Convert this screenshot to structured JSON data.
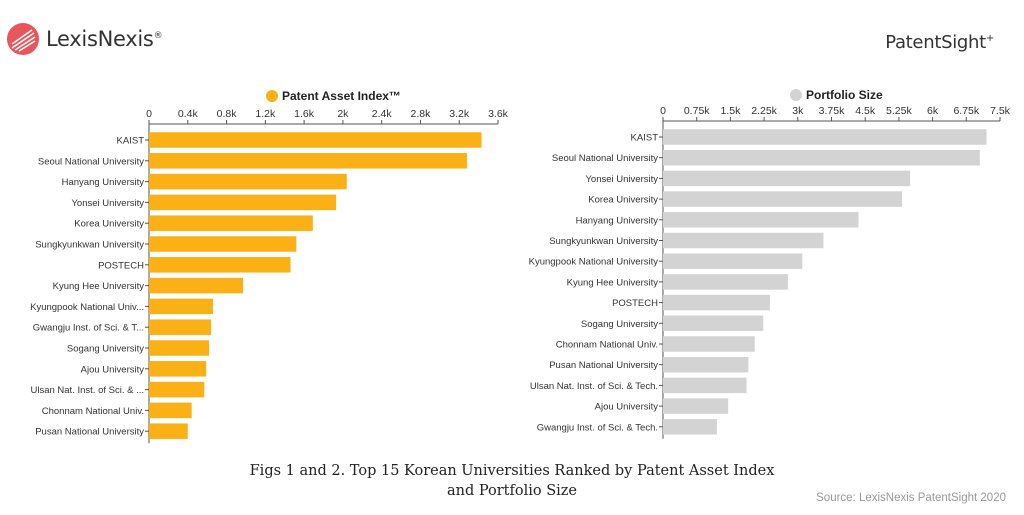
{
  "header": {
    "left_brand": "LexisNexis",
    "left_brand_mark": "®",
    "right_brand": "PatentSight",
    "right_brand_mark": "+"
  },
  "caption": {
    "line1": "Figs 1 and 2. Top 15 Korean Universities Ranked by Patent Asset Index",
    "line2": "and Portfolio Size"
  },
  "source": "Source: LexisNexis PatentSight 2020",
  "chart_data": [
    {
      "type": "bar",
      "orientation": "horizontal",
      "legend": "Patent Asset Index™",
      "color": "#FBB116",
      "xlim": [
        0,
        3600
      ],
      "ticks": [
        0,
        400,
        800,
        1200,
        1600,
        2000,
        2400,
        2800,
        3200,
        3600
      ],
      "tick_labels": [
        "0",
        "0.4k",
        "0.8k",
        "1.2k",
        "1.6k",
        "2k",
        "2.4k",
        "2.8k",
        "3.2k",
        "3.6k"
      ],
      "categories": [
        "KAIST",
        "Seoul National University",
        "Hanyang University",
        "Yonsei University",
        "Korea University",
        "Sungkyunkwan University",
        "POSTECH",
        "Kyung Hee University",
        "Kyungpook National Univ...",
        "Gwangju Inst. of Sci. & T...",
        "Sogang University",
        "Ajou University",
        "Ulsan Nat. Inst. of Sci. & ...",
        "Chonnam National Univ.",
        "Pusan National University"
      ],
      "values": [
        3430,
        3280,
        2040,
        1930,
        1690,
        1520,
        1460,
        970,
        660,
        640,
        620,
        590,
        570,
        440,
        400
      ]
    },
    {
      "type": "bar",
      "orientation": "horizontal",
      "legend": "Portfolio Size",
      "color": "#D3D3D3",
      "xlim": [
        0,
        7500
      ],
      "ticks": [
        0,
        750,
        1500,
        2250,
        3000,
        3750,
        4500,
        5250,
        6000,
        6750,
        7500
      ],
      "tick_labels": [
        "0",
        "0.75k",
        "1.5k",
        "2.25k",
        "3k",
        "3.75k",
        "4.5k",
        "5.25k",
        "6k",
        "6.75k",
        "7.5k"
      ],
      "categories": [
        "KAIST",
        "Seoul National University",
        "Yonsei University",
        "Korea University",
        "Hanyang University",
        "Sungkyunkwan University",
        "Kyungpook National University",
        "Kyung Hee University",
        "POSTECH",
        "Sogang University",
        "Chonnam National Univ.",
        "Pusan National University",
        "Ulsan Nat. Inst. of Sci. & Tech.",
        "Ajou University",
        "Gwangju Inst. of Sci. & Tech."
      ],
      "values": [
        7200,
        7050,
        5500,
        5320,
        4350,
        3570,
        3100,
        2780,
        2380,
        2230,
        2040,
        1900,
        1860,
        1450,
        1200
      ]
    }
  ]
}
